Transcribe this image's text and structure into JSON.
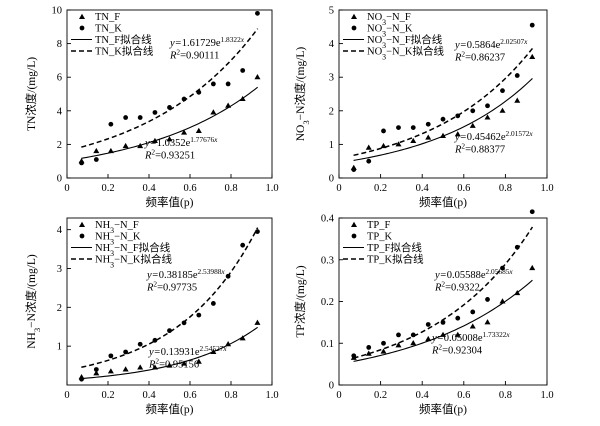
{
  "chart_data": [
    {
      "type": "scatter",
      "id": "tn",
      "xlabel": "频率值(p)",
      "ylabel": "TN浓度/(mg/L)",
      "xlim": [
        0,
        1
      ],
      "ylim": [
        0,
        10
      ],
      "xticks": [
        "0",
        "0.2",
        "0.4",
        "0.6",
        "0.8",
        "1.0"
      ],
      "yticks": [
        "0",
        "2",
        "4",
        "6",
        "8",
        "10"
      ],
      "x": [
        0.071,
        0.143,
        0.214,
        0.286,
        0.357,
        0.429,
        0.5,
        0.571,
        0.643,
        0.714,
        0.786,
        0.857,
        0.929
      ],
      "series": [
        {
          "name": "TN_F",
          "marker": "triangle",
          "values": [
            1.0,
            1.6,
            1.6,
            1.9,
            1.9,
            2.2,
            2.3,
            2.7,
            2.8,
            3.9,
            4.3,
            4.7,
            6.0
          ]
        },
        {
          "name": "TN_K",
          "marker": "circle",
          "values": [
            0.9,
            1.1,
            3.2,
            3.6,
            3.6,
            3.9,
            4.2,
            4.7,
            5.1,
            5.6,
            5.6,
            6.4,
            9.8
          ]
        }
      ],
      "fits": [
        {
          "name": "TN_F拟合线",
          "style": "solid",
          "a": 1.0352,
          "b": 1.77676
        },
        {
          "name": "TN_K拟合线",
          "style": "dashed",
          "a": 1.61729,
          "b": 1.8322
        }
      ],
      "annotations": [
        {
          "eq_a": "1.61729",
          "eq_b": "1.8322",
          "r2": "0.90111"
        },
        {
          "eq_a": "1.0352",
          "eq_b": "1.77676",
          "r2": "0.93251"
        }
      ]
    },
    {
      "type": "scatter",
      "id": "no3",
      "xlabel": "频率值(p)",
      "ylabel": "NO3−N浓度/(mg/L)",
      "xlim": [
        0,
        1
      ],
      "ylim": [
        0,
        5
      ],
      "xticks": [
        "0",
        "0.2",
        "0.4",
        "0.6",
        "0.8",
        "1.0"
      ],
      "yticks": [
        "0",
        "1",
        "2",
        "3",
        "4",
        "5"
      ],
      "x": [
        0.071,
        0.143,
        0.214,
        0.286,
        0.357,
        0.429,
        0.5,
        0.571,
        0.643,
        0.714,
        0.786,
        0.857,
        0.929
      ],
      "series": [
        {
          "name": "NO3−N_F",
          "marker": "triangle",
          "values": [
            0.3,
            0.9,
            0.95,
            1.0,
            1.1,
            1.2,
            1.25,
            1.3,
            1.55,
            1.8,
            2.0,
            2.3,
            3.6
          ]
        },
        {
          "name": "NO3−N_K",
          "marker": "circle",
          "values": [
            0.25,
            0.5,
            1.4,
            1.5,
            1.5,
            1.6,
            1.75,
            1.85,
            2.0,
            2.15,
            2.6,
            3.05,
            4.55
          ]
        }
      ],
      "fits": [
        {
          "name": "NO3−N_F拟合线",
          "style": "solid",
          "a": 0.45462,
          "b": 2.01572
        },
        {
          "name": "NO3−N_K拟合线",
          "style": "dashed",
          "a": 0.5864,
          "b": 2.02507
        }
      ],
      "annotations": [
        {
          "eq_a": "0.5864",
          "eq_b": "2.02507",
          "r2": "0.86237"
        },
        {
          "eq_a": "0.45462",
          "eq_b": "2.01572",
          "r2": "0.88377"
        }
      ]
    },
    {
      "type": "scatter",
      "id": "nh3",
      "xlabel": "频率值(p)",
      "ylabel": "NH3−N浓度/(mg/L)",
      "xlim": [
        0,
        1
      ],
      "ylim": [
        0,
        4.3
      ],
      "xticks": [
        "0",
        "0.2",
        "0.4",
        "0.6",
        "0.8",
        "1.0"
      ],
      "yticks": [
        "1",
        "2",
        "3",
        "4"
      ],
      "ytick_values": [
        1,
        2,
        3,
        4
      ],
      "x": [
        0.071,
        0.143,
        0.214,
        0.286,
        0.357,
        0.429,
        0.5,
        0.571,
        0.643,
        0.714,
        0.786,
        0.857,
        0.929
      ],
      "series": [
        {
          "name": "NH3−N_F",
          "marker": "triangle",
          "values": [
            0.2,
            0.3,
            0.35,
            0.4,
            0.45,
            0.45,
            0.5,
            0.55,
            0.6,
            0.85,
            1.05,
            1.2,
            1.6
          ]
        },
        {
          "name": "NH3−N_K",
          "marker": "circle",
          "values": [
            0.15,
            0.4,
            0.75,
            0.85,
            1.05,
            1.15,
            1.4,
            1.6,
            1.8,
            2.1,
            2.8,
            3.6,
            3.95
          ]
        }
      ],
      "fits": [
        {
          "name": "NH3−N_F拟合线",
          "style": "solid",
          "a": 0.13931,
          "b": 2.54527
        },
        {
          "name": "NH3−N_K拟合线",
          "style": "dashed",
          "a": 0.38185,
          "b": 2.53988
        }
      ],
      "annotations": [
        {
          "eq_a": "0.38185",
          "eq_b": "2.53988",
          "r2": "0.97735"
        },
        {
          "eq_a": "0.13931",
          "eq_b": "2.54527",
          "r2": "0.95156"
        }
      ]
    },
    {
      "type": "scatter",
      "id": "tp",
      "xlabel": "频率值(p)",
      "ylabel": "TP浓度/(mg/L)",
      "xlim": [
        0,
        1
      ],
      "ylim": [
        0,
        0.4
      ],
      "xticks": [
        "0",
        "0.2",
        "0.4",
        "0.6",
        "0.8",
        "1.0"
      ],
      "yticks": [
        "0",
        "0.1",
        "0.2",
        "0.3",
        "0.4"
      ],
      "x": [
        0.071,
        0.143,
        0.214,
        0.286,
        0.357,
        0.429,
        0.5,
        0.571,
        0.643,
        0.714,
        0.786,
        0.857,
        0.929
      ],
      "series": [
        {
          "name": "TP_F",
          "marker": "triangle",
          "values": [
            0.065,
            0.075,
            0.08,
            0.095,
            0.1,
            0.11,
            0.12,
            0.12,
            0.14,
            0.15,
            0.2,
            0.22,
            0.28
          ]
        },
        {
          "name": "TP_K",
          "marker": "circle",
          "values": [
            0.07,
            0.09,
            0.1,
            0.12,
            0.12,
            0.145,
            0.15,
            0.16,
            0.175,
            0.205,
            0.28,
            0.33,
            0.415
          ]
        }
      ],
      "fits": [
        {
          "name": "TP_F拟合线",
          "style": "solid",
          "a": 0.05008,
          "b": 1.73322
        },
        {
          "name": "TP_K拟合线",
          "style": "dashed",
          "a": 0.05588,
          "b": 2.05685
        }
      ],
      "annotations": [
        {
          "eq_a": "0.05588",
          "eq_b": "2.05685",
          "r2": "0.9322"
        },
        {
          "eq_a": "0.05008",
          "eq_b": "1.73322",
          "r2": "0.92304"
        }
      ]
    }
  ]
}
